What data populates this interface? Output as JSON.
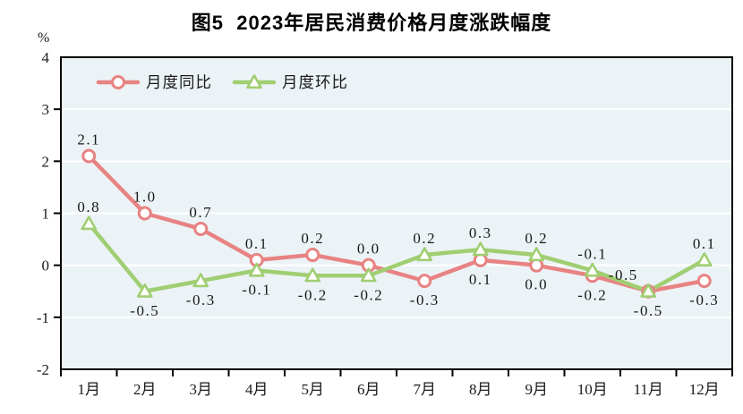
{
  "chart_data": {
    "type": "line",
    "title": "图5  2023年居民消费价格月度涨跌幅度",
    "y_unit": "%",
    "categories": [
      "1月",
      "2月",
      "3月",
      "4月",
      "5月",
      "6月",
      "7月",
      "8月",
      "9月",
      "10月",
      "11月",
      "12月"
    ],
    "yticks": [
      "4",
      "3",
      "2",
      "1",
      "0",
      "-1",
      "-2"
    ],
    "ylim": [
      -2,
      4
    ],
    "grid": true,
    "gridline_color": "#ffffff",
    "plot_bg_color": "#ecf3f6",
    "axis_color": "#000000",
    "legend_position": "top-left-inside",
    "series": [
      {
        "key": "yoy",
        "name": "月度同比",
        "marker": "circle",
        "color": "#e88383",
        "values": [
          2.1,
          1.0,
          0.7,
          0.1,
          0.2,
          0.0,
          -0.3,
          0.1,
          0.0,
          -0.2,
          -0.5,
          -0.3
        ],
        "labels": [
          "2.1",
          "1.0",
          "0.7",
          "0.1",
          "0.2",
          "0.0",
          "-0.3",
          "0.1",
          "0.0",
          "-0.2",
          "-0.5",
          "-0.3"
        ],
        "label_positions": [
          "above",
          "above",
          "above",
          "above",
          "above",
          "above",
          "below",
          "below",
          "below",
          "below",
          "below",
          "below"
        ]
      },
      {
        "key": "mom",
        "name": "月度环比",
        "marker": "triangle",
        "color": "#a0ce72",
        "values": [
          0.8,
          -0.5,
          -0.3,
          -0.1,
          -0.2,
          -0.2,
          0.2,
          0.3,
          0.2,
          -0.1,
          -0.5,
          0.1
        ],
        "labels": [
          "0.8",
          "-0.5",
          "-0.3",
          "-0.1",
          "-0.2",
          "-0.2",
          "0.2",
          "0.3",
          "0.2",
          "-0.1",
          "-0.5",
          "0.1"
        ],
        "label_positions": [
          "above",
          "below",
          "below",
          "below",
          "below",
          "below",
          "above",
          "above",
          "above",
          "above",
          "above-left",
          "above"
        ]
      }
    ]
  }
}
